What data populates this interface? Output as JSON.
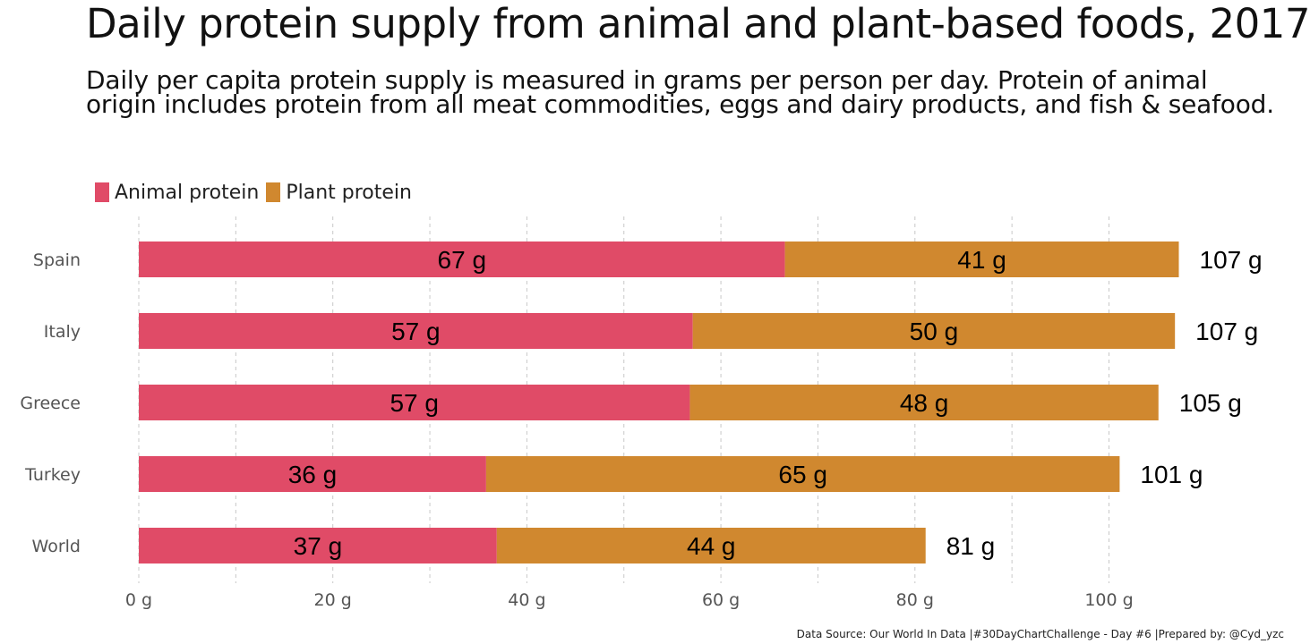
{
  "colors": {
    "animal": "#e04b67",
    "plant": "#d0882f",
    "grid": "#c8c8c8",
    "axis_text": "#555555"
  },
  "chart_data": {
    "type": "bar",
    "orientation": "horizontal",
    "stacked": true,
    "title": "Daily protein supply from animal and plant-based foods, 2017",
    "subtitle": "Daily per capita protein supply is measured in grams per person per day. Protein of animal origin includes protein from all meat commodities, eggs and dairy products, and fish & seafood.",
    "caption": "Data Source: Our World In Data |#30DayChartChallenge - Day #6 |Prepared by: @Cyd_yzc",
    "legend_position": "top-left",
    "grid": true,
    "categories": [
      "Spain",
      "Italy",
      "Greece",
      "Turkey",
      "World"
    ],
    "series": [
      {
        "name": "Animal protein",
        "values": [
          66.6,
          57.1,
          56.8,
          35.8,
          36.9
        ],
        "labels": [
          "67 g",
          "57 g",
          "57 g",
          "36 g",
          "37 g"
        ]
      },
      {
        "name": "Plant protein",
        "values": [
          40.6,
          49.7,
          48.3,
          65.3,
          44.2
        ],
        "labels": [
          "41 g",
          "50 g",
          "48 g",
          "65 g",
          "44 g"
        ]
      }
    ],
    "totals": [
      "107 g",
      "107 g",
      "105 g",
      "101 g",
      "81 g"
    ],
    "xlim": [
      0,
      100
    ],
    "xticks": [
      0,
      20,
      40,
      60,
      80,
      100
    ],
    "xtick_labels": [
      "0 g",
      "20 g",
      "40 g",
      "60 g",
      "80 g",
      "100 g"
    ]
  }
}
